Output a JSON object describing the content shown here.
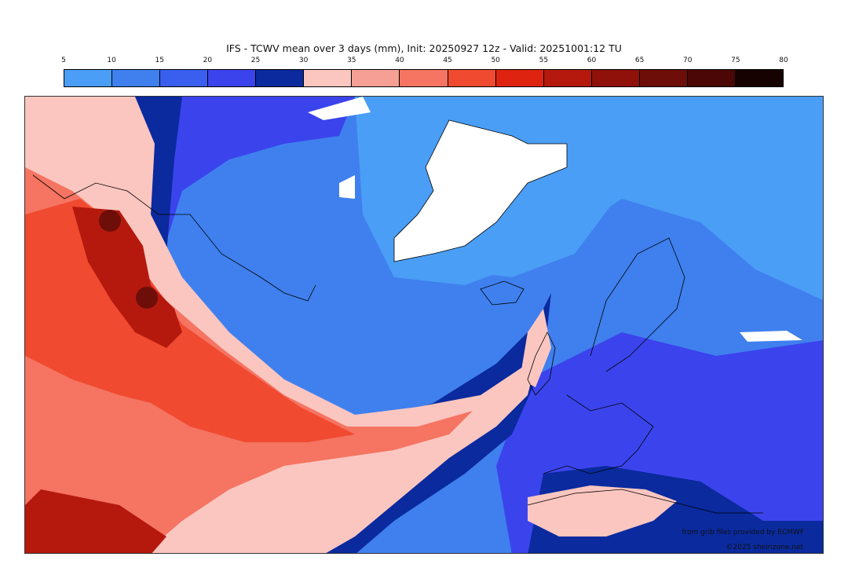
{
  "title": "IFS - TCWV mean over 3 days (mm), Init: 20250927 12z - Valid: 20251001:12 TU",
  "colorbar": {
    "ticks": [
      "5",
      "10",
      "15",
      "20",
      "25",
      "30",
      "35",
      "40",
      "45",
      "50",
      "55",
      "60",
      "65",
      "70",
      "75",
      "80"
    ],
    "colors": [
      "#4a9ef5",
      "#3f80ee",
      "#3a5fee",
      "#3b44ec",
      "#0a2a9e",
      "#fbc6c0",
      "#f6a095",
      "#f57462",
      "#f04a30",
      "#de2410",
      "#b5190d",
      "#8f110a",
      "#6e0e08",
      "#4a0706",
      "#170202"
    ]
  },
  "map": {
    "colors": {
      "ocean_low": "#4a9ef5",
      "ocean_mid": "#3f80ee",
      "band_20": "#3b44ec",
      "band_25": "#0a2a9e",
      "moist_30": "#fbc6c0",
      "moist_40": "#f57462",
      "moist_45": "#f04a30",
      "moist_55": "#b5190d",
      "moist_65": "#6e0e08",
      "missing": "#ffffff",
      "coast": "#000000"
    }
  },
  "credits": {
    "source": "from grib files provided by ECMWF",
    "copyright": "©2025 sheirizone.net"
  }
}
